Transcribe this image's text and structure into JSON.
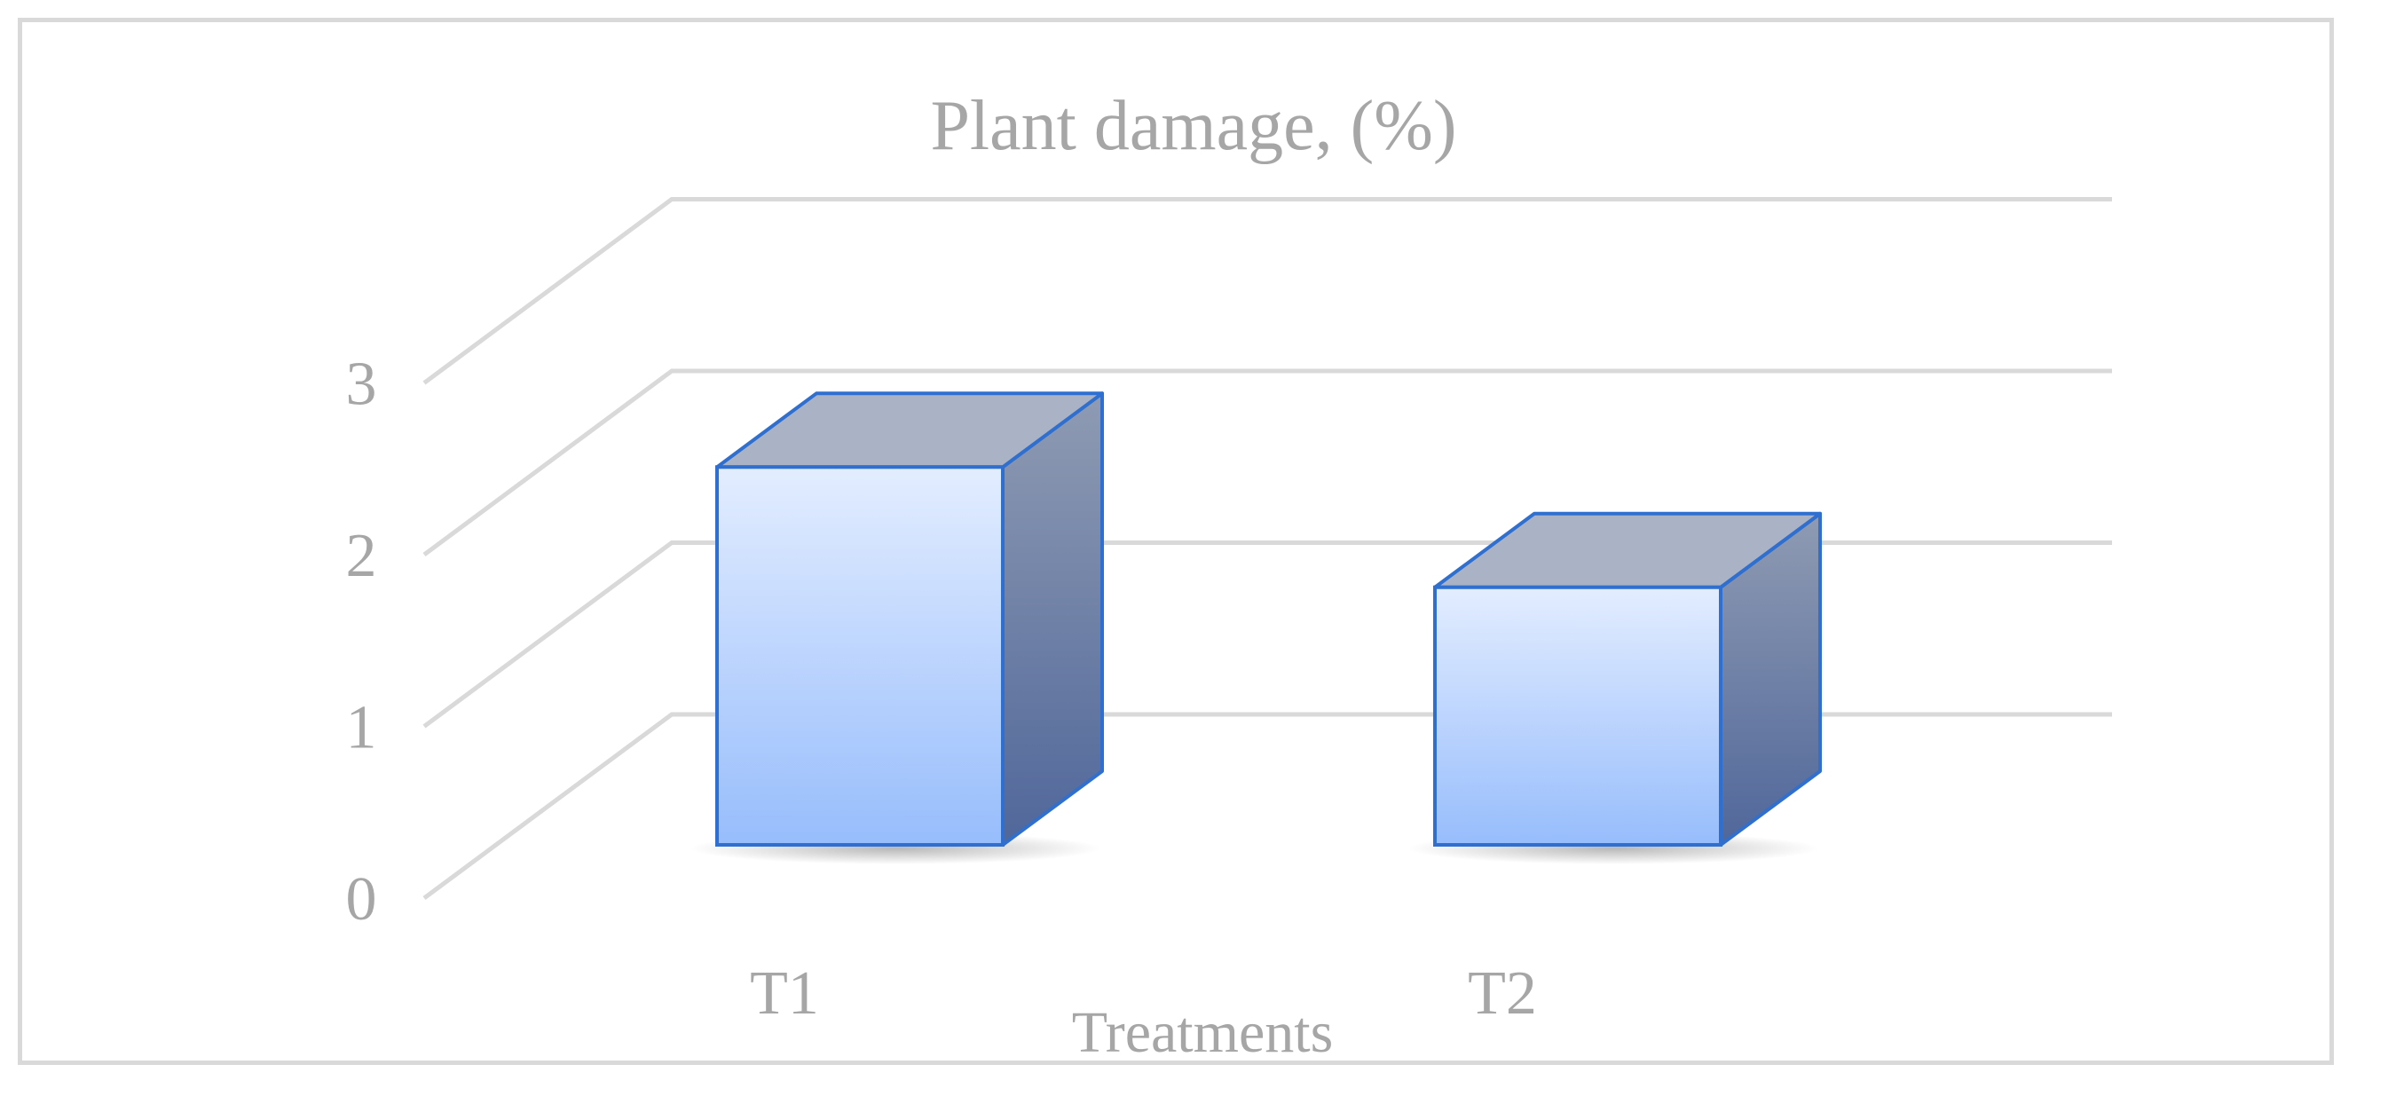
{
  "chart_data": {
    "type": "bar",
    "title": "Plant damage, (%)",
    "xlabel": "Treatments",
    "ylabel": "",
    "categories": [
      "T1",
      "T2"
    ],
    "values": [
      2.2,
      1.5
    ],
    "ylim": [
      0,
      3
    ],
    "yticks": [
      0,
      1,
      2,
      3
    ],
    "grid": true,
    "legend": "none",
    "style": "3d-column"
  },
  "colors": {
    "bar_front_top": "#e3edff",
    "bar_front_bottom": "#97bdfc",
    "bar_side_top": "#8f9bb3",
    "bar_side_bottom": "#50679a",
    "bar_top": "#aab3c6",
    "bar_edge": "#2f6fcf",
    "gridline": "#d9d9d9",
    "text": "#a6a6a6",
    "frame": "#d9d9d9"
  }
}
